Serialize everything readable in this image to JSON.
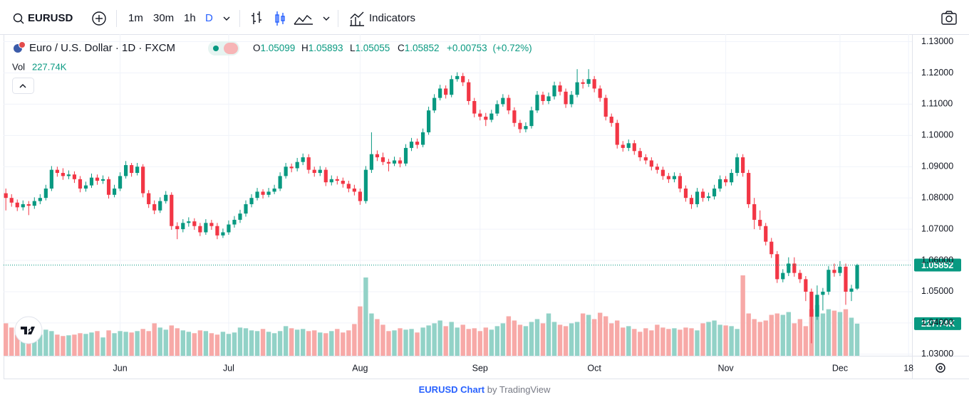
{
  "toolbar": {
    "symbol": "EURUSD",
    "intervals": [
      "1m",
      "30m",
      "1h",
      "D"
    ],
    "indicators": "Indicators"
  },
  "legend": {
    "title": "Euro / U.S. Dollar · 1D · FXCM",
    "ohlc_labels": [
      "O",
      "H",
      "L",
      "C"
    ],
    "change": {
      "value": 0.00753,
      "label": "+0.00753"
    },
    "change_pct": {
      "value": 0.72,
      "label": "(+0.72%)"
    },
    "volume_label": "Vol",
    "last_volume": {
      "value": 227740,
      "label": "227.74K"
    }
  },
  "chart_data": {
    "type": "candlestick",
    "up_color": "#089981",
    "down_color": "#f23645",
    "volume_up_color": "#92d2c7",
    "volume_down_color": "#f7a9a7",
    "grid": true,
    "xlim": [
      -0.4,
      158.6
    ],
    "xticks": [
      {
        "value": 20,
        "label": "Jun"
      },
      {
        "value": 39,
        "label": "Jul"
      },
      {
        "value": 62,
        "label": "Aug"
      },
      {
        "value": 83,
        "label": "Sep"
      },
      {
        "value": 103,
        "label": "Oct"
      },
      {
        "value": 126,
        "label": "Nov"
      },
      {
        "value": 146,
        "label": "Dec"
      },
      {
        "value": 158,
        "label": "18"
      }
    ],
    "ylim": [
      1.0295,
      1.1324
    ],
    "yticks": [
      {
        "value": 1.03,
        "label": "1.03000"
      },
      {
        "value": 1.04,
        "label": "1.04000"
      },
      {
        "value": 1.05,
        "label": "1.05000"
      },
      {
        "value": 1.06,
        "label": "1.06000"
      },
      {
        "value": 1.07,
        "label": "1.07000"
      },
      {
        "value": 1.08,
        "label": "1.08000"
      },
      {
        "value": 1.09,
        "label": "1.09000"
      },
      {
        "value": 1.1,
        "label": "1.10000"
      },
      {
        "value": 1.11,
        "label": "1.11000"
      },
      {
        "value": 1.12,
        "label": "1.12000"
      },
      {
        "value": 1.13,
        "label": "1.13000"
      }
    ],
    "candles": [
      [
        1.0815,
        1.083,
        1.076,
        1.08
      ],
      [
        1.08,
        1.0812,
        1.0772,
        1.0785
      ],
      [
        1.0785,
        1.0795,
        1.0758,
        1.077
      ],
      [
        1.077,
        1.0792,
        1.076,
        1.078
      ],
      [
        1.078,
        1.079,
        1.0745,
        1.0775
      ],
      [
        1.0775,
        1.0802,
        1.0765,
        1.079
      ],
      [
        1.079,
        1.0812,
        1.078,
        1.08
      ],
      [
        1.08,
        1.0842,
        1.0792,
        1.083
      ],
      [
        1.083,
        1.0902,
        1.0822,
        1.089
      ],
      [
        1.089,
        1.09,
        1.0868,
        1.088
      ],
      [
        1.088,
        1.0895,
        1.0858,
        1.087
      ],
      [
        1.087,
        1.0888,
        1.086,
        1.0875
      ],
      [
        1.0875,
        1.0885,
        1.0848,
        1.086
      ],
      [
        1.086,
        1.087,
        1.0818,
        1.083
      ],
      [
        1.083,
        1.0852,
        1.082,
        1.084
      ],
      [
        1.084,
        1.0878,
        1.0832,
        1.0865
      ],
      [
        1.0865,
        1.0875,
        1.0842,
        1.0855
      ],
      [
        1.0855,
        1.0872,
        1.0845,
        1.086
      ],
      [
        1.086,
        1.0868,
        1.0798,
        1.081
      ],
      [
        1.081,
        1.0842,
        1.0802,
        1.083
      ],
      [
        1.083,
        1.0882,
        1.0822,
        1.087
      ],
      [
        1.087,
        1.0918,
        1.0862,
        1.0905
      ],
      [
        1.0905,
        1.0912,
        1.0868,
        1.088
      ],
      [
        1.088,
        1.0912,
        1.0872,
        1.09
      ],
      [
        1.09,
        1.0908,
        1.0802,
        1.0815
      ],
      [
        1.0815,
        1.0825,
        1.0768,
        1.078
      ],
      [
        1.078,
        1.0792,
        1.0748,
        1.076
      ],
      [
        1.076,
        1.0802,
        1.0752,
        1.079
      ],
      [
        1.079,
        1.0822,
        1.0782,
        1.081
      ],
      [
        1.081,
        1.0818,
        1.0698,
        1.071
      ],
      [
        1.071,
        1.0722,
        1.0668,
        1.07
      ],
      [
        1.07,
        1.0732,
        1.069,
        1.072
      ],
      [
        1.072,
        1.0738,
        1.0708,
        1.0725
      ],
      [
        1.0725,
        1.0735,
        1.0698,
        1.071
      ],
      [
        1.071,
        1.072,
        1.0678,
        1.069
      ],
      [
        1.069,
        1.0732,
        1.0682,
        1.072
      ],
      [
        1.072,
        1.073,
        1.0698,
        1.071
      ],
      [
        1.071,
        1.072,
        1.0668,
        1.068
      ],
      [
        1.068,
        1.0702,
        1.0672,
        1.069
      ],
      [
        1.069,
        1.0728,
        1.0682,
        1.0715
      ],
      [
        1.0715,
        1.0742,
        1.0705,
        1.073
      ],
      [
        1.073,
        1.0762,
        1.072,
        1.075
      ],
      [
        1.075,
        1.0792,
        1.074,
        1.078
      ],
      [
        1.078,
        1.0812,
        1.077,
        1.08
      ],
      [
        1.08,
        1.0832,
        1.0792,
        1.082
      ],
      [
        1.082,
        1.0828,
        1.0798,
        1.081
      ],
      [
        1.081,
        1.0832,
        1.0802,
        1.082
      ],
      [
        1.082,
        1.0842,
        1.0812,
        1.083
      ],
      [
        1.083,
        1.0882,
        1.0822,
        1.087
      ],
      [
        1.087,
        1.0912,
        1.0862,
        1.09
      ],
      [
        1.09,
        1.091,
        1.0882,
        1.0895
      ],
      [
        1.0895,
        1.0928,
        1.0885,
        1.0915
      ],
      [
        1.0915,
        1.0942,
        1.0905,
        1.093
      ],
      [
        1.093,
        1.094,
        1.0878,
        1.089
      ],
      [
        1.089,
        1.09,
        1.0868,
        1.088
      ],
      [
        1.088,
        1.0902,
        1.087,
        1.089
      ],
      [
        1.089,
        1.0898,
        1.0838,
        1.085
      ],
      [
        1.085,
        1.0872,
        1.084,
        1.086
      ],
      [
        1.086,
        1.087,
        1.0843,
        1.0855
      ],
      [
        1.0855,
        1.0865,
        1.0833,
        1.0845
      ],
      [
        1.0845,
        1.0855,
        1.0818,
        1.083
      ],
      [
        1.083,
        1.0842,
        1.0808,
        1.082
      ],
      [
        1.082,
        1.083,
        1.0778,
        1.079
      ],
      [
        1.079,
        1.0902,
        1.0782,
        1.089
      ],
      [
        1.089,
        1.101,
        1.088,
        1.094
      ],
      [
        1.094,
        1.0952,
        1.0918,
        1.093
      ],
      [
        1.093,
        1.0945,
        1.0905,
        1.0915
      ],
      [
        1.0915,
        1.0925,
        1.0885,
        1.091
      ],
      [
        1.091,
        1.0932,
        1.0902,
        1.092
      ],
      [
        1.092,
        1.093,
        1.0898,
        1.091
      ],
      [
        1.091,
        1.0972,
        1.0902,
        1.096
      ],
      [
        1.096,
        1.0992,
        1.095,
        1.098
      ],
      [
        1.098,
        1.099,
        1.0958,
        1.097
      ],
      [
        1.097,
        1.1022,
        1.0962,
        1.101
      ],
      [
        1.101,
        1.1092,
        1.1002,
        1.108
      ],
      [
        1.108,
        1.1132,
        1.1072,
        1.112
      ],
      [
        1.112,
        1.1162,
        1.1112,
        1.115
      ],
      [
        1.115,
        1.116,
        1.1118,
        1.113
      ],
      [
        1.113,
        1.1192,
        1.1122,
        1.118
      ],
      [
        1.118,
        1.1202,
        1.1172,
        1.119
      ],
      [
        1.119,
        1.12,
        1.1158,
        1.117
      ],
      [
        1.117,
        1.118,
        1.1098,
        1.111
      ],
      [
        1.111,
        1.112,
        1.1058,
        1.107
      ],
      [
        1.107,
        1.1082,
        1.1048,
        1.106
      ],
      [
        1.106,
        1.1072,
        1.103,
        1.105
      ],
      [
        1.105,
        1.1082,
        1.1042,
        1.107
      ],
      [
        1.107,
        1.1112,
        1.1062,
        1.11
      ],
      [
        1.11,
        1.1132,
        1.1092,
        1.112
      ],
      [
        1.112,
        1.113,
        1.1068,
        1.108
      ],
      [
        1.108,
        1.109,
        1.1028,
        1.104
      ],
      [
        1.104,
        1.105,
        1.1008,
        1.102
      ],
      [
        1.102,
        1.1042,
        1.101,
        1.103
      ],
      [
        1.103,
        1.1092,
        1.1022,
        1.108
      ],
      [
        1.108,
        1.1142,
        1.1072,
        1.113
      ],
      [
        1.113,
        1.114,
        1.1098,
        1.111
      ],
      [
        1.111,
        1.1137,
        1.11,
        1.1125
      ],
      [
        1.1125,
        1.1172,
        1.1115,
        1.116
      ],
      [
        1.116,
        1.1172,
        1.1128,
        1.114
      ],
      [
        1.114,
        1.115,
        1.1088,
        1.11
      ],
      [
        1.11,
        1.1142,
        1.109,
        1.113
      ],
      [
        1.113,
        1.1212,
        1.1122,
        1.117
      ],
      [
        1.117,
        1.118,
        1.115,
        1.1165
      ],
      [
        1.1165,
        1.1212,
        1.1155,
        1.118
      ],
      [
        1.118,
        1.119,
        1.1138,
        1.115
      ],
      [
        1.115,
        1.116,
        1.1108,
        1.112
      ],
      [
        1.112,
        1.113,
        1.1048,
        1.106
      ],
      [
        1.106,
        1.107,
        1.1028,
        1.104
      ],
      [
        1.104,
        1.105,
        1.0958,
        1.097
      ],
      [
        1.097,
        1.0982,
        1.0948,
        1.096
      ],
      [
        1.096,
        1.0987,
        1.095,
        1.0975
      ],
      [
        1.0975,
        1.0985,
        1.0938,
        1.095
      ],
      [
        1.095,
        1.096,
        1.0918,
        1.093
      ],
      [
        1.093,
        1.094,
        1.0908,
        1.092
      ],
      [
        1.092,
        1.093,
        1.0888,
        1.09
      ],
      [
        1.09,
        1.091,
        1.0878,
        1.089
      ],
      [
        1.089,
        1.09,
        1.0858,
        1.087
      ],
      [
        1.087,
        1.088,
        1.0848,
        1.086
      ],
      [
        1.086,
        1.0882,
        1.085,
        1.087
      ],
      [
        1.087,
        1.088,
        1.0818,
        1.083
      ],
      [
        1.083,
        1.084,
        1.0788,
        1.08
      ],
      [
        1.08,
        1.081,
        1.0765,
        1.078
      ],
      [
        1.078,
        1.0832,
        1.077,
        1.082
      ],
      [
        1.082,
        1.083,
        1.0788,
        1.08
      ],
      [
        1.08,
        1.0817,
        1.079,
        1.0805
      ],
      [
        1.0805,
        1.0842,
        1.0795,
        1.083
      ],
      [
        1.083,
        1.0872,
        1.082,
        1.086
      ],
      [
        1.086,
        1.087,
        1.0838,
        1.085
      ],
      [
        1.085,
        1.0892,
        1.084,
        1.088
      ],
      [
        1.088,
        1.0942,
        1.087,
        1.093
      ],
      [
        1.093,
        1.094,
        1.0868,
        1.088
      ],
      [
        1.088,
        1.089,
        1.0768,
        1.078
      ],
      [
        1.078,
        1.08,
        1.07,
        1.073
      ],
      [
        1.073,
        1.076,
        1.0698,
        1.071
      ],
      [
        1.071,
        1.072,
        1.0648,
        1.066
      ],
      [
        1.066,
        1.0672,
        1.0608,
        1.062
      ],
      [
        1.062,
        1.063,
        1.0528,
        1.054
      ],
      [
        1.054,
        1.0572,
        1.053,
        1.056
      ],
      [
        1.056,
        1.061,
        1.055,
        1.059
      ],
      [
        1.059,
        1.061,
        1.0548,
        1.056
      ],
      [
        1.056,
        1.057,
        1.0528,
        1.054
      ],
      [
        1.054,
        1.055,
        1.047,
        1.05
      ],
      [
        1.05,
        1.051,
        1.0335,
        1.042
      ],
      [
        1.042,
        1.052,
        1.041,
        1.049
      ],
      [
        1.049,
        1.0512,
        1.044,
        1.05
      ],
      [
        1.05,
        1.0582,
        1.049,
        1.057
      ],
      [
        1.057,
        1.059,
        1.0548,
        1.056
      ],
      [
        1.056,
        1.0598,
        1.055,
        1.058
      ],
      [
        1.058,
        1.059,
        1.0458,
        1.05
      ],
      [
        1.05,
        1.0522,
        1.047,
        1.051
      ],
      [
        1.05099,
        1.05893,
        1.05055,
        1.05852
      ]
    ],
    "volumes": [
      230000,
      200000,
      150000,
      140000,
      130000,
      145000,
      150000,
      185000,
      175000,
      150000,
      140000,
      145000,
      150000,
      160000,
      155000,
      165000,
      175000,
      130000,
      180000,
      160000,
      175000,
      170000,
      165000,
      175000,
      190000,
      175000,
      230000,
      200000,
      185000,
      215000,
      195000,
      180000,
      170000,
      160000,
      180000,
      175000,
      160000,
      150000,
      170000,
      155000,
      165000,
      200000,
      195000,
      180000,
      175000,
      190000,
      170000,
      160000,
      175000,
      210000,
      195000,
      185000,
      190000,
      175000,
      180000,
      165000,
      160000,
      175000,
      190000,
      165000,
      180000,
      225000,
      350000,
      555000,
      300000,
      260000,
      220000,
      175000,
      180000,
      195000,
      185000,
      190000,
      165000,
      200000,
      215000,
      230000,
      250000,
      210000,
      240000,
      200000,
      220000,
      190000,
      195000,
      175000,
      200000,
      185000,
      210000,
      230000,
      280000,
      250000,
      220000,
      210000,
      240000,
      260000,
      230000,
      300000,
      240000,
      220000,
      210000,
      230000,
      240000,
      300000,
      290000,
      260000,
      305000,
      280000,
      230000,
      250000,
      200000,
      210000,
      190000,
      170000,
      195000,
      180000,
      220000,
      200000,
      190000,
      195000,
      185000,
      200000,
      195000,
      180000,
      230000,
      240000,
      250000,
      220000,
      215000,
      210000,
      190000,
      570000,
      300000,
      260000,
      240000,
      250000,
      290000,
      300000,
      290000,
      310000,
      230000,
      260000,
      210000,
      330000,
      360000,
      300000,
      330000,
      320000,
      310000,
      330000,
      270000,
      227740
    ]
  },
  "footer": {
    "link": "EURUSD Chart",
    "by": "by TradingView"
  }
}
